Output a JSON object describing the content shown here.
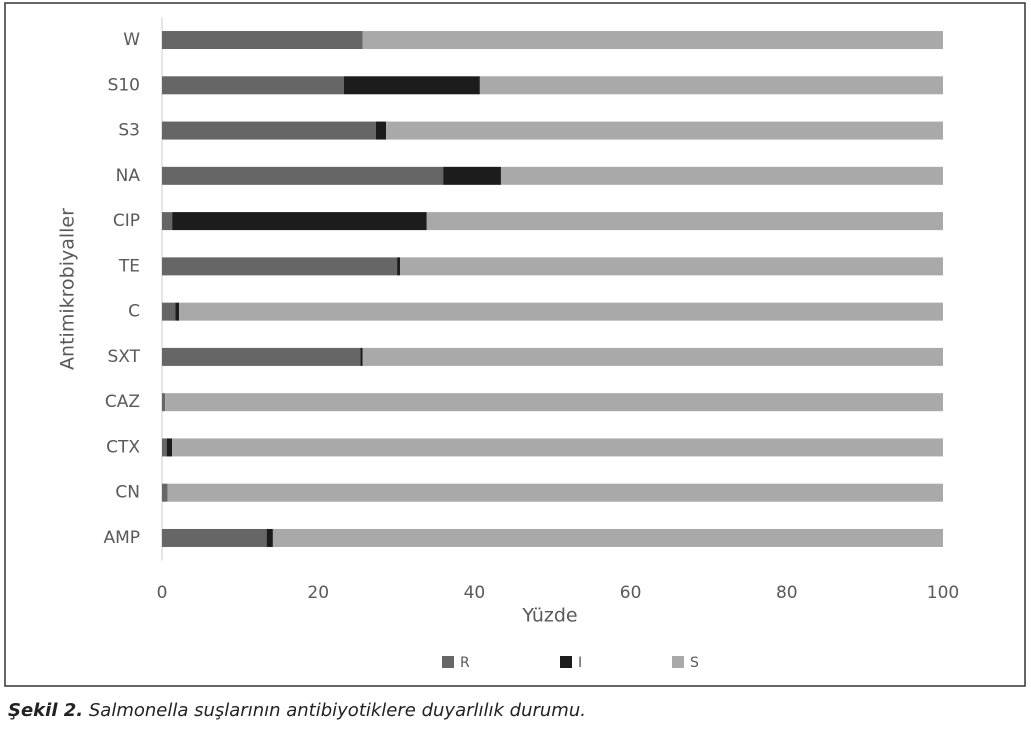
{
  "chart_data": {
    "type": "stacked-barh",
    "x_label": "Yüzde",
    "y_label": "Antimikrobiyaller",
    "categories": [
      "W",
      "S10",
      "S3",
      "NA",
      "CIP",
      "TE",
      "C",
      "SXT",
      "CAZ",
      "CTX",
      "CN",
      "AMP"
    ],
    "series": [
      {
        "name": "R",
        "color": "#666666",
        "values": [
          25.7,
          23.3,
          27.4,
          36.0,
          1.3,
          30.1,
          1.7,
          25.4,
          0.4,
          0.6,
          0.7,
          13.4
        ]
      },
      {
        "name": "I",
        "color": "#1c1c1c",
        "values": [
          0,
          17.4,
          1.3,
          7.4,
          32.6,
          0.4,
          0.5,
          0.3,
          0,
          0.7,
          0,
          0.8
        ]
      },
      {
        "name": "S",
        "color": "#a9a9a9",
        "values": [
          74.3,
          59.3,
          71.3,
          56.6,
          66.1,
          69.5,
          97.8,
          74.3,
          99.6,
          98.7,
          99.3,
          85.8
        ]
      }
    ],
    "xlim": [
      0,
      100
    ],
    "xticks": [
      0,
      20,
      40,
      60,
      80,
      100
    ],
    "grid": false,
    "legend": "bottom"
  },
  "caption": {
    "label": "Şekil 2.",
    "text": "Salmonella suşlarının antibiyotiklere duyarlılık durumu."
  }
}
